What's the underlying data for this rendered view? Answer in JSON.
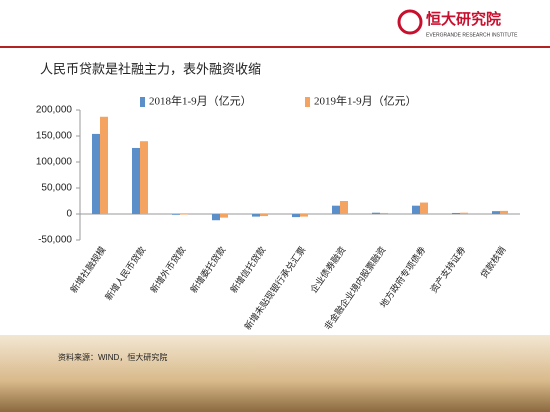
{
  "brand": {
    "name": "恒大研究院",
    "subtitle": "EVERGRANDE RESEARCH INSTITUTE"
  },
  "source": "资料来源：WIND，恒大研究院",
  "chart_data": {
    "type": "bar",
    "title": "人民币贷款是社融主力，表外融资收缩",
    "categories": [
      "新增社融规模",
      "新增人民币贷款",
      "新增外币贷款",
      "新增委托贷款",
      "新增信托贷款",
      "新增未贴现银行承兑汇票",
      "企业债券融资",
      "非金融企业境内股票融资",
      "地方政府专项债券",
      "资产支持证券",
      "贷款核销"
    ],
    "series": [
      {
        "name": "2018年1-9月（亿元）",
        "color": "#5b8fc9",
        "values": [
          154000,
          127000,
          -1500,
          -12000,
          -5000,
          -6000,
          16000,
          2500,
          16000,
          2000,
          5500
        ]
      },
      {
        "name": "2019年1-9月（亿元）",
        "color": "#f4a460",
        "values": [
          187000,
          140000,
          -1000,
          -7000,
          -4000,
          -5000,
          25000,
          2000,
          22000,
          2500,
          6000
        ]
      }
    ],
    "ylim": [
      -50000,
      200000
    ],
    "yticks": [
      {
        "value": -50000,
        "label": "-50,000"
      },
      0,
      {
        "value": 50000,
        "label": "50,000"
      },
      {
        "value": 100000,
        "label": "100,000"
      },
      {
        "value": 150000,
        "label": "150,000"
      },
      {
        "value": 200000,
        "label": "200,000"
      }
    ],
    "legend": "top"
  }
}
